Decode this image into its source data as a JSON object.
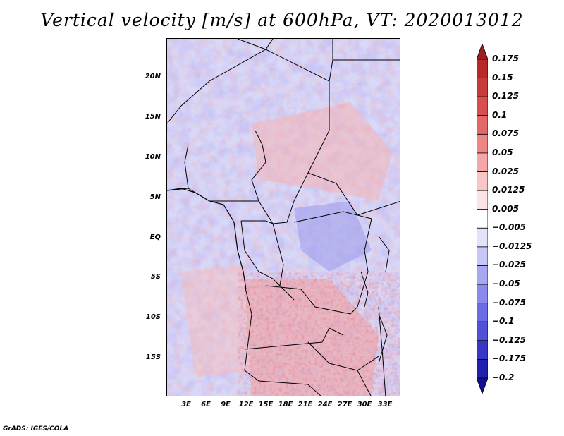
{
  "title": "Vertical velocity [m/s] at 600hPa, VT: 2020013012",
  "footer": "GrADS: IGES/COLA",
  "lat_labels": [
    "20N",
    "15N",
    "10N",
    "5N",
    "EQ",
    "5S",
    "10S",
    "15S"
  ],
  "lon_labels": [
    "3E",
    "6E",
    "9E",
    "12E",
    "15E",
    "18E",
    "21E",
    "24E",
    "27E",
    "30E",
    "33E"
  ],
  "colorbar": {
    "labels": [
      "0.175",
      "0.15",
      "0.125",
      "0.1",
      "0.075",
      "0.05",
      "0.025",
      "0.0125",
      "0.005",
      "−0.005",
      "−0.0125",
      "−0.025",
      "−0.05",
      "−0.075",
      "−0.1",
      "−0.125",
      "−0.175",
      "−0.2"
    ],
    "colors": [
      "#a01c1c",
      "#b82828",
      "#c83a3a",
      "#d84e4e",
      "#e46868",
      "#ee8686",
      "#f5a6a6",
      "#f9c6c6",
      "#fde4e4",
      "#ffffff",
      "#e2e2fb",
      "#c6c6f7",
      "#a8a8f2",
      "#8a8aec",
      "#6c6ce4",
      "#5050d8",
      "#3838c6",
      "#2020b0",
      "#10109a"
    ]
  },
  "map": {
    "region": "Central Africa",
    "variable": "vertical velocity",
    "units": "m/s",
    "level": "600hPa",
    "valid_time": "2020013012"
  }
}
